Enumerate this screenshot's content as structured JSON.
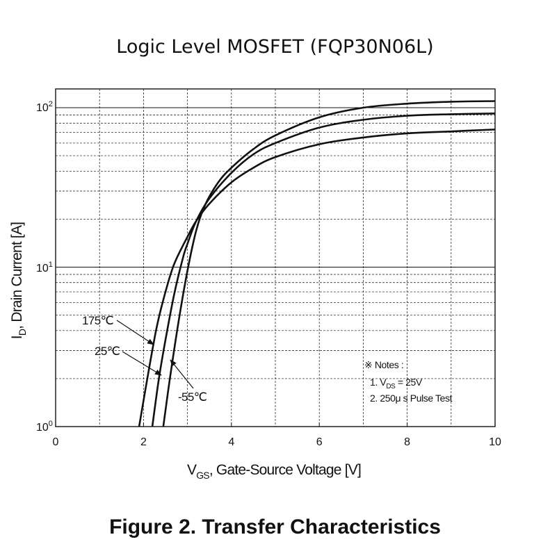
{
  "title": "Logic Level MOSFET (FQP30N06L)",
  "caption": "Figure 2. Transfer Characteristics",
  "chart_data": {
    "type": "line",
    "xlabel": {
      "main": "V",
      "sub": "GS",
      "rest": ", Gate-Source Voltage [V]"
    },
    "ylabel": {
      "main": "I",
      "sub": "D",
      "rest": ", Drain Current [A]"
    },
    "xlim": [
      0,
      10
    ],
    "ylim": [
      1,
      130
    ],
    "yscale": "log",
    "grid": true,
    "x_ticks": [
      "0",
      "2",
      "4",
      "6",
      "8",
      "10"
    ],
    "y_ticks": [
      {
        "base": "10",
        "exp": "0"
      },
      {
        "base": "10",
        "exp": "1"
      },
      {
        "base": "10",
        "exp": "2"
      }
    ],
    "series": [
      {
        "name": "175℃",
        "x": [
          1.9,
          2.1,
          2.3,
          2.5,
          2.7,
          3.0,
          3.2,
          3.5,
          4.0,
          4.5,
          5.0,
          6.0,
          7.0,
          8.0,
          9.0,
          10.0
        ],
        "y": [
          1.0,
          2.1,
          4.2,
          7.0,
          10.5,
          15.5,
          19.5,
          25.0,
          34.0,
          42.0,
          49.0,
          59.0,
          65.0,
          69.0,
          71.0,
          73.0
        ]
      },
      {
        "name": "25℃",
        "x": [
          2.2,
          2.35,
          2.5,
          2.7,
          2.9,
          3.0,
          3.2,
          3.5,
          4.0,
          4.5,
          5.0,
          6.0,
          7.0,
          8.0,
          9.0,
          10.0
        ],
        "y": [
          1.0,
          2.0,
          3.5,
          6.8,
          11.5,
          14.0,
          19.5,
          27.0,
          39.0,
          51.0,
          60.0,
          75.0,
          84.0,
          89.0,
          91.0,
          92.0
        ]
      },
      {
        "name": "-55℃",
        "x": [
          2.45,
          2.6,
          2.8,
          3.0,
          3.2,
          3.4,
          3.7,
          4.0,
          4.5,
          5.0,
          6.0,
          7.0,
          8.0,
          9.0,
          10.0
        ],
        "y": [
          1.0,
          2.0,
          4.6,
          9.5,
          17.0,
          24.5,
          34.0,
          42.0,
          55.0,
          67.0,
          87.0,
          100.0,
          106.0,
          109.0,
          110.0
        ]
      }
    ],
    "annotations": {
      "label_175": "175℃",
      "label_25": "25℃",
      "label_m55": "-55℃",
      "notes_title": "※ Notes :",
      "note1_prefix": "1. V",
      "note1_sub": "DS",
      "note1_rest": " = 25V",
      "note2": "2. 250μ s Pulse Test"
    }
  }
}
